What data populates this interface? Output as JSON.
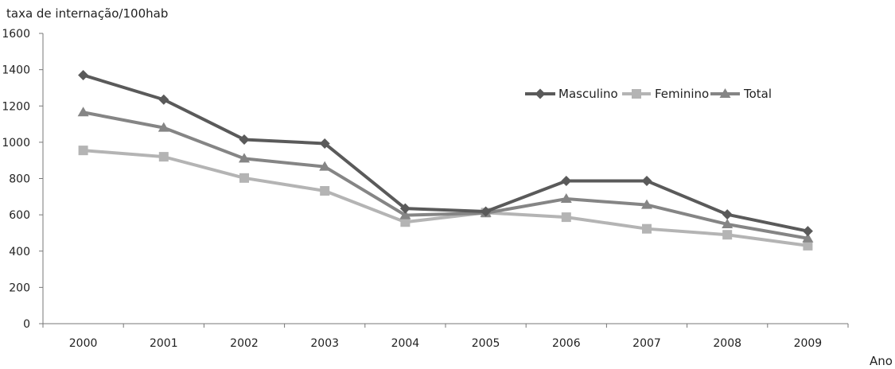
{
  "chart_data": {
    "type": "line",
    "ylabel": "taxa de internação/100hab",
    "xlabel": "Ano",
    "categories": [
      "2000",
      "2001",
      "2002",
      "2003",
      "2004",
      "2005",
      "2006",
      "2007",
      "2008",
      "2009"
    ],
    "yticks": [
      "0",
      "200",
      "400",
      "600",
      "800",
      "1000",
      "1200",
      "1400",
      "1600"
    ],
    "ylim": [
      0,
      1600
    ],
    "grid": false,
    "legend": "upper-right-inside",
    "series": [
      {
        "name": "Masculino",
        "marker": "diamond",
        "color": "#5a5a5a",
        "values": [
          1370,
          1235,
          1015,
          993,
          635,
          618,
          787,
          787,
          602,
          510
        ]
      },
      {
        "name": "Feminino",
        "marker": "square",
        "color": "#b4b4b4",
        "values": [
          955,
          920,
          803,
          732,
          560,
          612,
          587,
          523,
          490,
          430
        ]
      },
      {
        "name": "Total",
        "marker": "triangle",
        "color": "#858585",
        "values": [
          1165,
          1080,
          910,
          865,
          598,
          610,
          688,
          655,
          548,
          470
        ]
      }
    ]
  }
}
